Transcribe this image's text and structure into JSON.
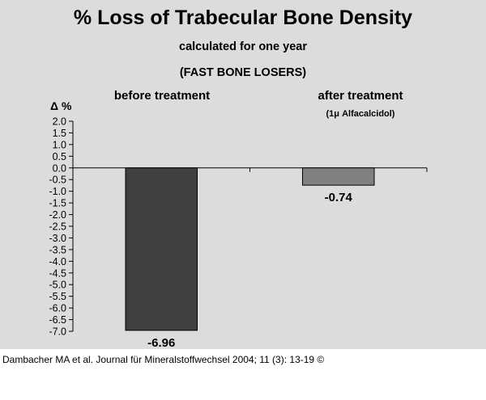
{
  "chart_data": {
    "type": "bar",
    "title": "% Loss of Trabecular Bone Density",
    "subtitle_lines": [
      "calculated for one year",
      "(FAST BONE LOSERS)"
    ],
    "ylabel": "Δ %",
    "categories": [
      "before treatment",
      "after treatment"
    ],
    "category_sublabels": [
      "",
      "(1μ Alfacalcidol)"
    ],
    "values": [
      -6.96,
      -0.74
    ],
    "value_labels": [
      "-6.96",
      "-0.74"
    ],
    "bar_colors": [
      "#404040",
      "#808080"
    ],
    "ylim": [
      -7.0,
      2.0
    ],
    "yticks": [
      2.0,
      1.5,
      1.0,
      0.5,
      0.0,
      -0.5,
      -1.0,
      -1.5,
      -2.0,
      -2.5,
      -3.0,
      -3.5,
      -4.0,
      -4.5,
      -5.0,
      -5.5,
      -6.0,
      -6.5,
      -7.0
    ],
    "ytick_labels": [
      "2.0",
      "1.5",
      "1.0",
      "0.5",
      "0.0",
      "-0.5",
      "-1.0",
      "-1.5",
      "-2.0",
      "-2.5",
      "-3.0",
      "-3.5",
      "-4.0",
      "-4.5",
      "-5.0",
      "-5.5",
      "-6.0",
      "-6.5",
      "-7.0"
    ],
    "grid": false,
    "legend": "none",
    "background_color": "#dcdcdc"
  },
  "citation": "Dambacher MA et al. Journal für Mineralstoffwechsel 2004; 11 (3): 13-19 ©"
}
